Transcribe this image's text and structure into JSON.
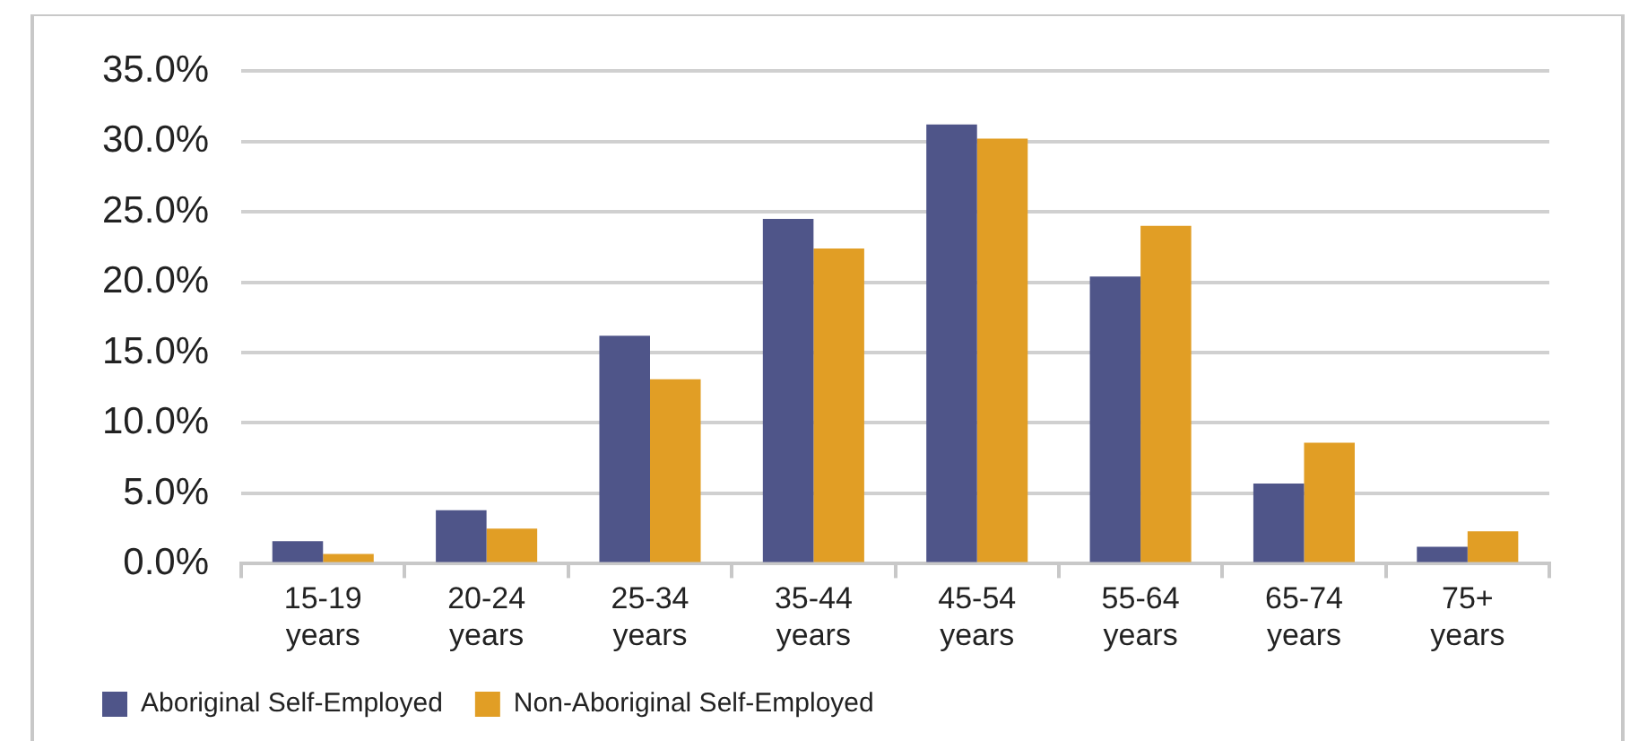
{
  "chart_data": {
    "type": "bar",
    "categories": [
      "15-19 years",
      "20-24 years",
      "25-34 years",
      "35-44 years",
      "45-54 years",
      "55-64 years",
      "65-74 years",
      "75+ years"
    ],
    "series": [
      {
        "name": "Aboriginal Self-Employed",
        "color": "#4f5589",
        "values": [
          1.6,
          3.8,
          16.2,
          24.5,
          31.2,
          20.4,
          5.7,
          1.2
        ]
      },
      {
        "name": "Non-Aboriginal Self-Employed",
        "color": "#e19e25",
        "values": [
          0.7,
          2.5,
          13.1,
          22.4,
          30.2,
          24.0,
          8.6,
          2.3
        ]
      }
    ],
    "ylim": [
      0,
      35
    ],
    "yticks": [
      {
        "value": 0,
        "label": "0.0%"
      },
      {
        "value": 5,
        "label": "5.0%"
      },
      {
        "value": 10,
        "label": "10.0%"
      },
      {
        "value": 15,
        "label": "15.0%"
      },
      {
        "value": 20,
        "label": "20.0%"
      },
      {
        "value": 25,
        "label": "25.0%"
      },
      {
        "value": 30,
        "label": "30.0%"
      },
      {
        "value": 35,
        "label": "35.0%"
      }
    ],
    "grid": "y",
    "legend": "bottom left"
  }
}
